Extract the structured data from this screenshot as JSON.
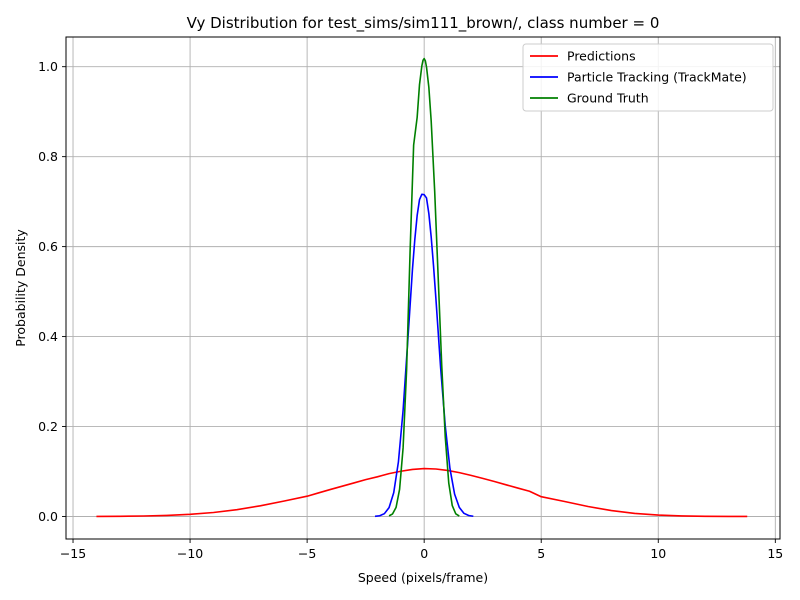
{
  "chart_data": {
    "type": "line",
    "title": "Vy Distribution for test_sims/sim111_brown/, class number = 0",
    "xlabel": "Speed (pixels/frame)",
    "ylabel": "Probability Density",
    "xlim": [
      -15.3,
      15.2
    ],
    "ylim": [
      -0.05,
      1.066
    ],
    "xticks": [
      -15,
      -10,
      -5,
      0,
      5,
      10,
      15
    ],
    "xtick_labels": [
      "−15",
      "−10",
      "−5",
      "0",
      "5",
      "10",
      "15"
    ],
    "yticks": [
      0.0,
      0.2,
      0.4,
      0.6,
      0.8,
      1.0
    ],
    "ytick_labels": [
      "0.0",
      "0.2",
      "0.4",
      "0.6",
      "0.8",
      "1.0"
    ],
    "grid": true,
    "legend_position": "top-right",
    "series": [
      {
        "name": "Predictions",
        "color": "#ff0000",
        "x": [
          -14.0,
          -13.0,
          -12.0,
          -11.0,
          -10.0,
          -9.0,
          -8.0,
          -7.0,
          -6.0,
          -5.0,
          -4.5,
          -4.0,
          -3.5,
          -3.0,
          -2.5,
          -2.0,
          -1.5,
          -1.0,
          -0.5,
          0.0,
          0.5,
          1.0,
          1.5,
          2.0,
          2.5,
          3.0,
          3.5,
          4.0,
          4.5,
          5.0,
          6.0,
          7.0,
          8.0,
          9.0,
          10.0,
          11.0,
          12.0,
          13.0,
          13.8
        ],
        "y": [
          0.0002,
          0.0005,
          0.0011,
          0.0024,
          0.0048,
          0.0089,
          0.0152,
          0.0238,
          0.0342,
          0.0451,
          0.0527,
          0.0602,
          0.0674,
          0.0746,
          0.082,
          0.0882,
          0.0954,
          0.1006,
          0.1047,
          0.1065,
          0.1056,
          0.1024,
          0.0975,
          0.0915,
          0.0848,
          0.0778,
          0.0705,
          0.0632,
          0.0561,
          0.044,
          0.0334,
          0.0222,
          0.0132,
          0.0069,
          0.0032,
          0.0013,
          0.0005,
          0.0002,
          0.0001
        ]
      },
      {
        "name": "Particle Tracking (TrackMate)",
        "color": "#0000ff",
        "x": [
          -2.1,
          -1.9,
          -1.7,
          -1.5,
          -1.3,
          -1.1,
          -0.9,
          -0.7,
          -0.5,
          -0.4,
          -0.3,
          -0.2,
          -0.1,
          0.0,
          0.1,
          0.2,
          0.3,
          0.4,
          0.5,
          0.7,
          0.9,
          1.1,
          1.3,
          1.5,
          1.7,
          1.9,
          2.1
        ],
        "y": [
          0.0004,
          0.0017,
          0.0063,
          0.0198,
          0.0532,
          0.1216,
          0.2361,
          0.3905,
          0.5498,
          0.6158,
          0.6691,
          0.7043,
          0.7162,
          0.7155,
          0.7082,
          0.6733,
          0.6214,
          0.5571,
          0.485,
          0.3325,
          0.2015,
          0.1071,
          0.0498,
          0.0202,
          0.0071,
          0.0022,
          0.0006
        ]
      },
      {
        "name": "Ground Truth",
        "color": "#008000",
        "x": [
          -1.5,
          -1.35,
          -1.2,
          -1.05,
          -0.9,
          -0.75,
          -0.6,
          -0.45,
          -0.3,
          -0.2,
          -0.1,
          -0.05,
          0.0,
          0.05,
          0.1,
          0.2,
          0.3,
          0.45,
          0.6,
          0.75,
          0.9,
          1.05,
          1.2,
          1.35,
          1.5
        ],
        "y": [
          0.0014,
          0.0058,
          0.0203,
          0.0605,
          0.1527,
          0.3265,
          0.5915,
          0.8258,
          0.8872,
          0.9598,
          1.0015,
          1.0142,
          1.018,
          1.0133,
          0.9993,
          0.9542,
          0.8792,
          0.7223,
          0.5293,
          0.336,
          0.1775,
          0.0745,
          0.0242,
          0.006,
          0.0011
        ]
      }
    ]
  }
}
